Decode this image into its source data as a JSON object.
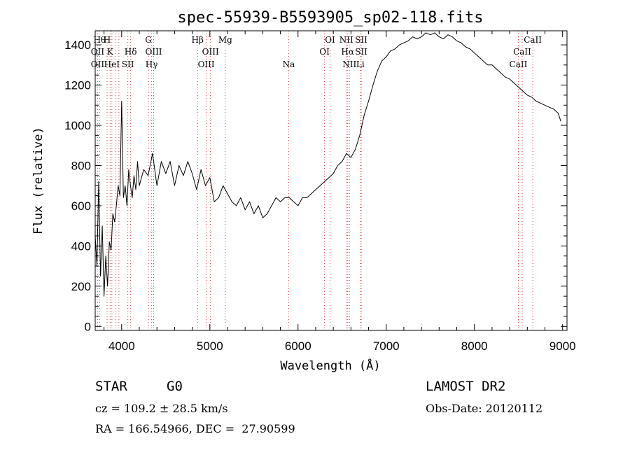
{
  "chart_data": {
    "type": "line",
    "title": "spec-55939-B5593905_sp02-118.fits",
    "xlabel": "Wavelength (Å)",
    "ylabel": "Flux (relative)",
    "xlim": [
      3700,
      9050
    ],
    "ylim": [
      -20,
      1470
    ],
    "xticks": [
      4000,
      5000,
      6000,
      7000,
      8000,
      9000
    ],
    "yticks": [
      0,
      200,
      400,
      600,
      800,
      1000,
      1200,
      1400
    ],
    "grid": false,
    "series": [
      {
        "x": [
          3700,
          3720,
          3740,
          3760,
          3780,
          3800,
          3820,
          3840,
          3860,
          3880,
          3900,
          3920,
          3940,
          3960,
          3980,
          4000,
          4020,
          4040,
          4060,
          4080,
          4100,
          4120,
          4140,
          4160,
          4180,
          4200,
          4250,
          4300,
          4350,
          4400,
          4450,
          4500,
          4550,
          4600,
          4650,
          4700,
          4750,
          4800,
          4850,
          4900,
          4950,
          5000,
          5050,
          5100,
          5150,
          5200,
          5250,
          5300,
          5350,
          5400,
          5450,
          5500,
          5550,
          5600,
          5650,
          5700,
          5750,
          5800,
          5850,
          5900,
          5950,
          6000,
          6050,
          6100,
          6150,
          6200,
          6250,
          6300,
          6350,
          6400,
          6450,
          6500,
          6550,
          6600,
          6650,
          6700,
          6750,
          6800,
          6850,
          6900,
          6950,
          7000,
          7050,
          7100,
          7150,
          7200,
          7250,
          7300,
          7350,
          7400,
          7450,
          7500,
          7550,
          7600,
          7650,
          7700,
          7750,
          7800,
          7850,
          7900,
          7950,
          8000,
          8050,
          8100,
          8150,
          8200,
          8250,
          8300,
          8350,
          8400,
          8450,
          8500,
          8550,
          8600,
          8650,
          8700,
          8750,
          8800,
          8850,
          8900,
          8950,
          8980
        ],
        "y": [
          450,
          300,
          720,
          250,
          500,
          150,
          350,
          200,
          420,
          380,
          560,
          520,
          600,
          700,
          650,
          1120,
          640,
          700,
          600,
          780,
          700,
          640,
          750,
          680,
          820,
          700,
          780,
          750,
          860,
          700,
          820,
          760,
          820,
          700,
          800,
          750,
          820,
          760,
          680,
          780,
          700,
          740,
          620,
          640,
          700,
          660,
          620,
          600,
          640,
          580,
          620,
          560,
          600,
          540,
          560,
          600,
          640,
          620,
          640,
          640,
          620,
          600,
          640,
          640,
          660,
          680,
          700,
          720,
          740,
          760,
          800,
          820,
          860,
          840,
          880,
          950,
          1050,
          1120,
          1200,
          1270,
          1320,
          1340,
          1370,
          1380,
          1400,
          1410,
          1420,
          1440,
          1430,
          1440,
          1460,
          1450,
          1460,
          1440,
          1430,
          1450,
          1440,
          1420,
          1410,
          1390,
          1380,
          1360,
          1340,
          1320,
          1300,
          1300,
          1280,
          1260,
          1240,
          1230,
          1210,
          1190,
          1170,
          1150,
          1140,
          1120,
          1110,
          1100,
          1090,
          1080,
          1060,
          1020
        ]
      }
    ],
    "line_markers": [
      {
        "wl": 3727,
        "label": "OII",
        "row": 2
      },
      {
        "wl": 3727,
        "label": "OII",
        "row": 3
      },
      {
        "wl": 3750,
        "label": "Hθ",
        "row": 1
      },
      {
        "wl": 3835,
        "label": "H",
        "row": 1
      },
      {
        "wl": 3869,
        "label": "K",
        "row": 2
      },
      {
        "wl": 3889,
        "label": "HeI",
        "row": 3
      },
      {
        "wl": 3934,
        "label": "",
        "row": 0
      },
      {
        "wl": 3969,
        "label": "",
        "row": 0
      },
      {
        "wl": 4070,
        "label": "SII",
        "row": 3
      },
      {
        "wl": 4102,
        "label": "Hδ",
        "row": 2
      },
      {
        "wl": 4304,
        "label": "G",
        "row": 1
      },
      {
        "wl": 4340,
        "label": "Hγ",
        "row": 3
      },
      {
        "wl": 4363,
        "label": "OIII",
        "row": 2
      },
      {
        "wl": 4861,
        "label": "Hβ",
        "row": 1
      },
      {
        "wl": 4959,
        "label": "OIII",
        "row": 3
      },
      {
        "wl": 5007,
        "label": "OIII",
        "row": 2
      },
      {
        "wl": 5175,
        "label": "Mg",
        "row": 1
      },
      {
        "wl": 5894,
        "label": "Na",
        "row": 3
      },
      {
        "wl": 6300,
        "label": "OI",
        "row": 2
      },
      {
        "wl": 6363,
        "label": "OI",
        "row": 1
      },
      {
        "wl": 6548,
        "label": "NII",
        "row": 1
      },
      {
        "wl": 6563,
        "label": "Hα",
        "row": 2
      },
      {
        "wl": 6583,
        "label": "NII",
        "row": 3
      },
      {
        "wl": 6717,
        "label": "SII",
        "row": 1
      },
      {
        "wl": 6717,
        "label": "SII",
        "row": 2
      },
      {
        "wl": 6707,
        "label": "Li",
        "row": 3
      },
      {
        "wl": 8498,
        "label": "CaII",
        "row": 3
      },
      {
        "wl": 8542,
        "label": "CaII",
        "row": 2
      },
      {
        "wl": 8662,
        "label": "CaII",
        "row": 1
      }
    ]
  },
  "footer": {
    "object_type": "STAR",
    "subclass": "G0",
    "survey": "LAMOST DR2",
    "cz": "cz = 109.2 ± 28.5 km/s",
    "obs_date": "Obs-Date: 20120112",
    "radec": "RA = 166.54966, DEC =  27.90599"
  }
}
